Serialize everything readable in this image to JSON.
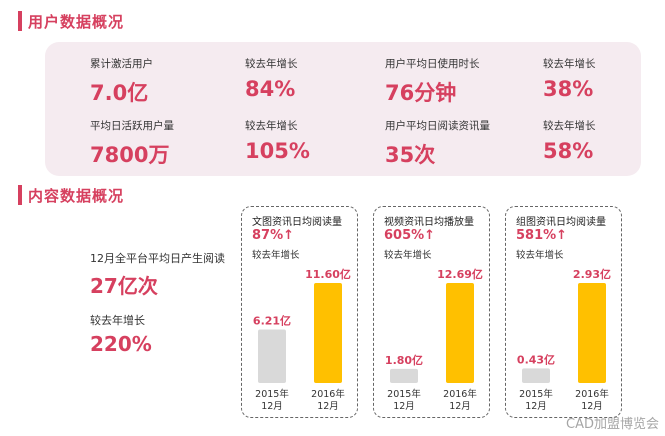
{
  "sections": {
    "user_title": "用户数据概况",
    "content_title": "内容数据概况"
  },
  "user_stats": [
    {
      "label": "累计激活用户",
      "value": "7.0亿"
    },
    {
      "label": "较去年增长",
      "value": "84%"
    },
    {
      "label": "用户平均日使用时长",
      "value": "76分钟"
    },
    {
      "label": "较去年增长",
      "value": "38%"
    },
    {
      "label": "平均日活跃用户量",
      "value": "7800万"
    },
    {
      "label": "较去年增长",
      "value": "105%"
    },
    {
      "label": "用户平均日阅读资讯量",
      "value": "35次"
    },
    {
      "label": "较去年增长",
      "value": "58%"
    }
  ],
  "content_left": {
    "read_label": "12月全平台平均日产生阅读",
    "read_value": "27亿次",
    "growth_label": "较去年增长",
    "growth_value": "220%"
  },
  "chart_data": [
    {
      "type": "bar",
      "title": "文图资讯日均阅读量",
      "growth": "87%",
      "growth_label": "较去年增长",
      "categories": [
        "2015年\n12月",
        "2016年\n12月"
      ],
      "values": [
        6.21,
        11.6
      ],
      "value_labels": [
        "6.21亿",
        "11.60亿"
      ],
      "colors": [
        "#d9d9d9",
        "#ffc000"
      ]
    },
    {
      "type": "bar",
      "title": "视频资讯日均播放量",
      "growth": "605%",
      "growth_label": "较去年增长",
      "categories": [
        "2015年\n12月",
        "2016年\n12月"
      ],
      "values": [
        1.8,
        12.69
      ],
      "value_labels": [
        "1.80亿",
        "12.69亿"
      ],
      "colors": [
        "#d9d9d9",
        "#ffc000"
      ]
    },
    {
      "type": "bar",
      "title": "组图资讯日均阅读量",
      "growth": "581%",
      "growth_label": "较去年增长",
      "categories": [
        "2015年\n12月",
        "2016年\n12月"
      ],
      "values": [
        0.43,
        2.93
      ],
      "value_labels": [
        "0.43亿",
        "2.93亿"
      ],
      "colors": [
        "#d9d9d9",
        "#ffc000"
      ]
    }
  ],
  "watermark": "CAD加盟博览会"
}
